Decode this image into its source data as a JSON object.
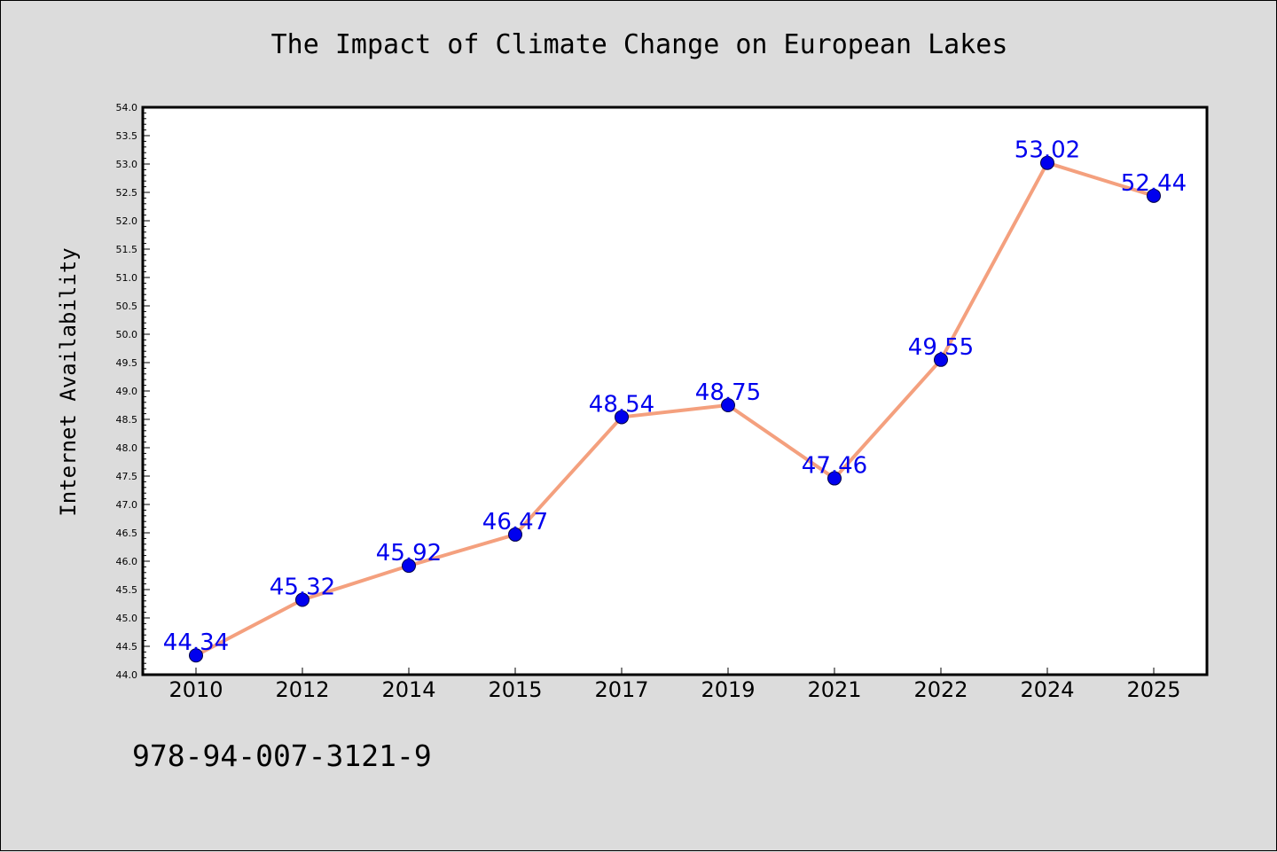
{
  "page": {
    "background": "#dcdcdc",
    "footer_code": "978-94-007-3121-9"
  },
  "chart_data": {
    "type": "line",
    "title": "The Impact of Climate Change on European Lakes",
    "xlabel": "",
    "ylabel": "Internet Availability",
    "categories": [
      "2010",
      "2012",
      "2014",
      "2015",
      "2017",
      "2019",
      "2021",
      "2022",
      "2024",
      "2025"
    ],
    "series": [
      {
        "values": [
          44.34,
          45.32,
          45.92,
          46.47,
          48.54,
          48.75,
          47.46,
          49.55,
          53.02,
          52.44
        ],
        "line_color": "#f4a07e",
        "marker_color": "#0000ee",
        "label_color": "#0000ee"
      }
    ],
    "ylim": [
      44.0,
      54.0
    ],
    "y_major_step": 0.5,
    "y_minor_step": 0.1,
    "y_tick_decimals": 1,
    "grid": false,
    "legend": "none",
    "data_labels": true,
    "plot_background": "#ffffff"
  }
}
